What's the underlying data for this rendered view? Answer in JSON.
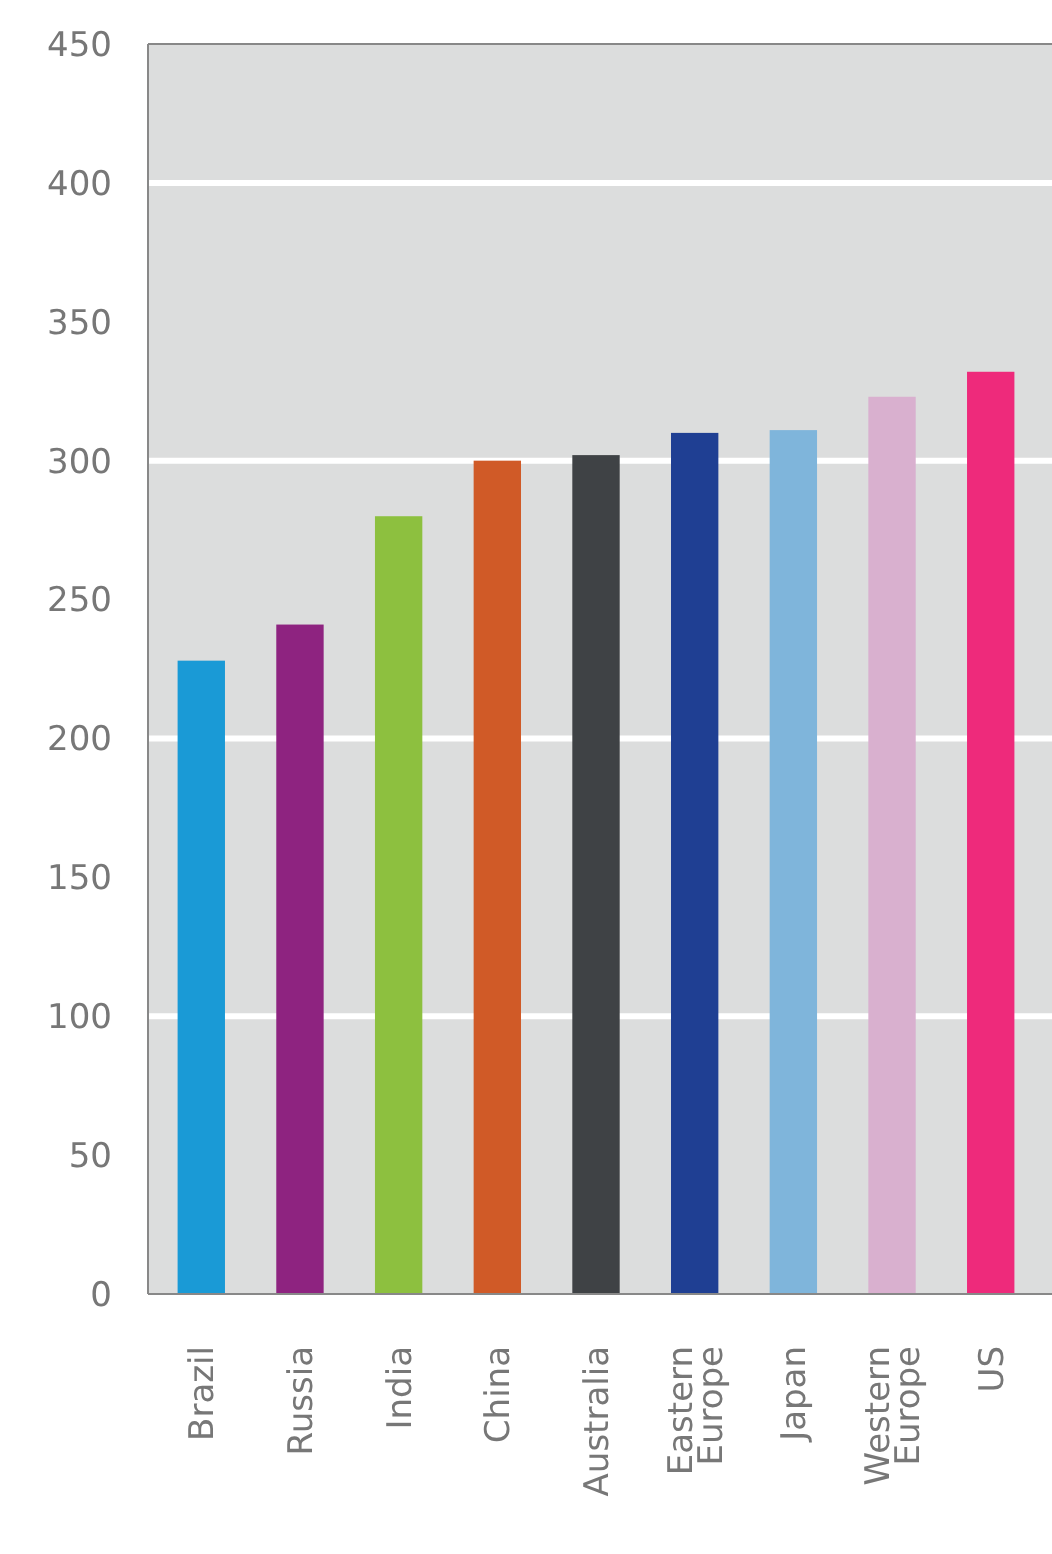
{
  "chart_data": {
    "type": "bar",
    "categories": [
      "Brazil",
      "Russia",
      "India",
      "China",
      "Australia",
      "Eastern Europe",
      "Japan",
      "Western Europe",
      "US"
    ],
    "values": [
      228,
      241,
      280,
      300,
      302,
      310,
      311,
      323,
      332
    ],
    "colors": [
      "#1a9ad6",
      "#8e2380",
      "#8dc03f",
      "#d05a27",
      "#3f4245",
      "#1f3f93",
      "#7fb5db",
      "#d9b0cf",
      "#ee2a7b"
    ],
    "ylim": [
      0,
      450
    ],
    "yticks": [
      0,
      50,
      100,
      150,
      200,
      250,
      300,
      350,
      400,
      450
    ],
    "grid": "y"
  }
}
